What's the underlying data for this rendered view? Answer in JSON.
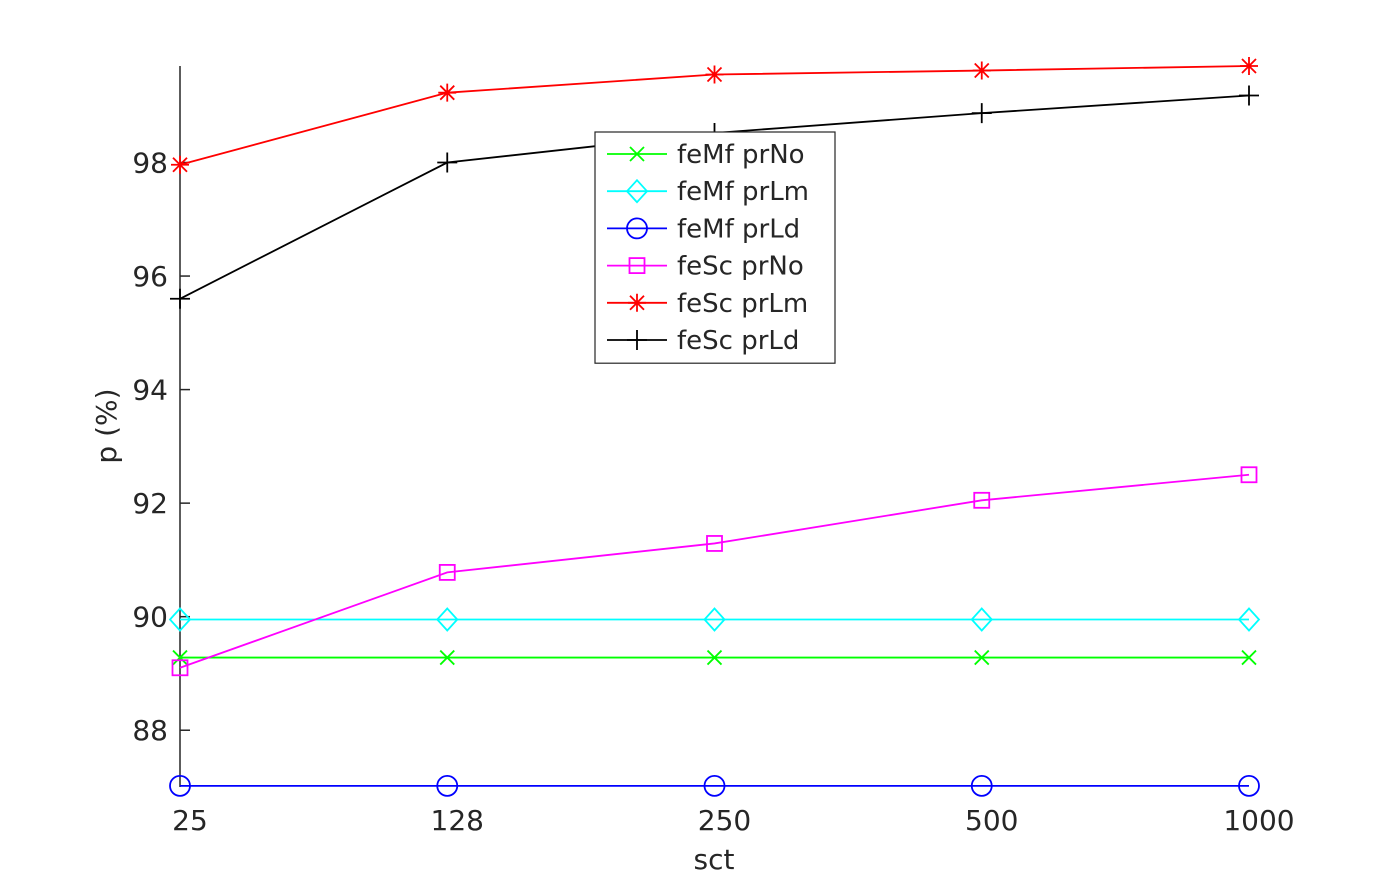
{
  "chart_data": {
    "type": "line",
    "xlabel": "sct",
    "ylabel": "p (%)",
    "categories": [
      "25",
      "128",
      "250",
      "500",
      "1000"
    ],
    "ylim": [
      87.0,
      99.7
    ],
    "yticks": [
      88,
      90,
      92,
      94,
      96,
      98
    ],
    "grid": false,
    "legend_position": "top-center",
    "series": [
      {
        "name": "feMf prNo",
        "color": "#00ff00",
        "marker": "x",
        "values": [
          89.28,
          89.28,
          89.28,
          89.28,
          89.28
        ]
      },
      {
        "name": "feMf prLm",
        "color": "#00ffff",
        "marker": "diamond",
        "values": [
          89.95,
          89.95,
          89.95,
          89.95,
          89.95
        ]
      },
      {
        "name": "feMf prLd",
        "color": "#0000ff",
        "marker": "circle",
        "values": [
          87.02,
          87.02,
          87.02,
          87.02,
          87.02
        ]
      },
      {
        "name": "feSc prNo",
        "color": "#ff00ff",
        "marker": "square",
        "values": [
          89.1,
          90.78,
          91.29,
          92.05,
          92.5
        ]
      },
      {
        "name": "feSc prLm",
        "color": "#ff0000",
        "marker": "asterisk",
        "values": [
          97.96,
          99.23,
          99.55,
          99.62,
          99.7
        ]
      },
      {
        "name": "feSc prLd",
        "color": "#000000",
        "marker": "plus",
        "values": [
          95.6,
          98.0,
          98.52,
          98.87,
          99.18
        ]
      }
    ]
  }
}
